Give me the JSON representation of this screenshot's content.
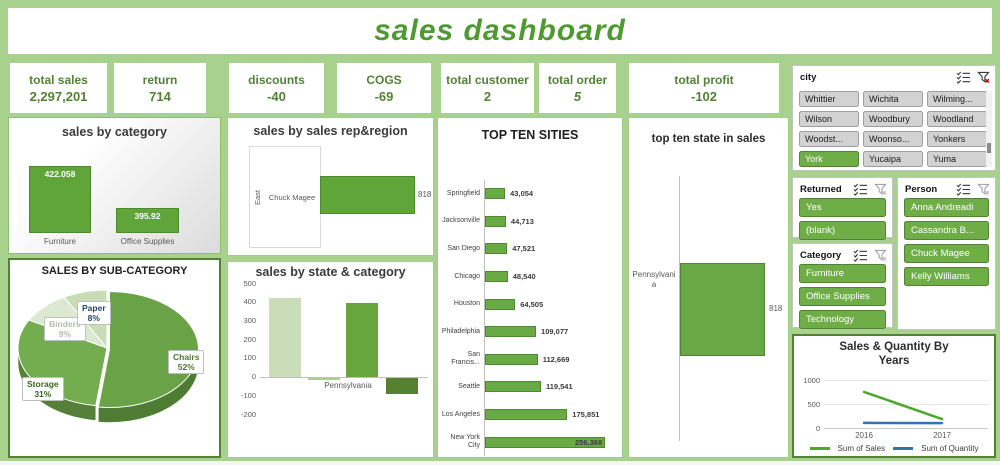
{
  "title": "sales dashboard",
  "kpis": [
    {
      "label": "total sales",
      "value": "2,297,201"
    },
    {
      "label": "return",
      "value": "714"
    },
    {
      "label": "discounts",
      "value": "-40"
    },
    {
      "label": "COGS",
      "value": "-69"
    },
    {
      "label": "total customer",
      "value": "2"
    },
    {
      "label": "total order",
      "value": "5",
      "italic": true
    },
    {
      "label": "total profit",
      "value": "-102"
    }
  ],
  "slicers": {
    "city": {
      "title": "city",
      "items": [
        "Whittier",
        "Wichita",
        "Wilming...",
        "Wilson",
        "Woodbury",
        "Woodland",
        "Woodst...",
        "Woonso...",
        "Yonkers",
        "York",
        "Yucaipa",
        "Yuma"
      ],
      "selected": [
        "York"
      ]
    },
    "returned": {
      "title": "Returned",
      "items": [
        "Yes",
        "(blank)"
      ],
      "selected": [
        "Yes",
        "(blank)"
      ]
    },
    "category": {
      "title": "Category",
      "items": [
        "Furniture",
        "Office Supplies",
        "Technology"
      ],
      "selected": [
        "Furniture",
        "Office Supplies",
        "Technology"
      ]
    },
    "person": {
      "title": "Person",
      "items": [
        "Anna Andreadi",
        "Cassandra B...",
        "Chuck Magee",
        "Kelly Williams"
      ],
      "selected": [
        "Anna Andreadi",
        "Cassandra B...",
        "Chuck Magee",
        "Kelly Williams"
      ]
    }
  },
  "colors": {
    "background": "#a9d18e",
    "accent_green": "#6fae47",
    "dark_green": "#538135",
    "bar_green": "#5fa53a",
    "line_green": "#4ea72e",
    "line_blue": "#2e75b6"
  },
  "chart_data": [
    {
      "id": "sales_by_category",
      "type": "bar",
      "title": "sales by category",
      "categories": [
        "Furniture",
        "Office Supplies"
      ],
      "values": [
        422.058,
        395.92
      ],
      "value_labels": [
        "422.058",
        "395.92"
      ],
      "ylim": [
        380,
        440
      ],
      "grid": false,
      "legend": "none"
    },
    {
      "id": "sales_by_subcategory",
      "type": "pie",
      "title": "SALES BY SUB-CATEGORY",
      "slices": [
        {
          "label": "Chairs",
          "pct": 52,
          "pct_label": "52%",
          "color": "#69a247",
          "side_color": "#4e7c33",
          "label_color": "#4e7a2a"
        },
        {
          "label": "Storage",
          "pct": 31,
          "pct_label": "31%",
          "color": "#74ac50",
          "side_color": "#567f3a",
          "label_color": "#3a661f"
        },
        {
          "label": "Binders",
          "pct": 9,
          "pct_label": "9%",
          "color": "#dde8d2",
          "side_color": "#c3d2b4",
          "label_color": "#b2bcaa"
        },
        {
          "label": "Paper",
          "pct": 8,
          "pct_label": "8%",
          "color": "#c8dcb6",
          "side_color": "#afc79a",
          "label_color": "#24466e"
        }
      ],
      "effect": "3d",
      "start_angle_deg": 0,
      "clockwise": true
    },
    {
      "id": "sales_by_rep_region",
      "type": "bar",
      "orientation": "horizontal",
      "title": "sales by sales rep&region",
      "region": "East",
      "categories": [
        "Chuck Magee"
      ],
      "values": [
        818
      ],
      "value_labels": [
        "818"
      ]
    },
    {
      "id": "sales_by_state_category",
      "type": "column",
      "title": "sales by state & category",
      "x_label": "Pennsylvania",
      "values": [
        422,
        -15,
        395,
        -90
      ],
      "colors": [
        "#c9ddb8",
        "#a9d18e",
        "#68a53d",
        "#568230"
      ],
      "yticks": [
        500,
        400,
        300,
        200,
        100,
        0,
        -100,
        -200
      ],
      "ylim": [
        -250,
        500
      ]
    },
    {
      "id": "top_ten_cities",
      "type": "bar",
      "orientation": "horizontal",
      "title": "TOP TEN SITIES",
      "categories": [
        "Springfield",
        "Jacksonville",
        "San Diego",
        "Chicago",
        "Houston",
        "Philadelphia",
        "San Francis...",
        "Seattle",
        "Los Angeles",
        "New York City"
      ],
      "values": [
        43054,
        44713,
        47521,
        48540,
        64505,
        109077,
        112669,
        119541,
        175851,
        256368
      ],
      "value_labels": [
        "43,054",
        "44,713",
        "47,521",
        "48,540",
        "64,505",
        "109,077",
        "112,669",
        "119,541",
        "175,851",
        "256,368"
      ],
      "xmax": 256368
    },
    {
      "id": "top_ten_state",
      "type": "bar",
      "orientation": "horizontal",
      "title": "top ten state in sales",
      "categories": [
        "Pennsylvania"
      ],
      "values": [
        818
      ],
      "value_labels": [
        "818"
      ]
    },
    {
      "id": "sales_qty_by_years",
      "type": "line",
      "title": "Sales & Quantity By Years",
      "x": [
        "2016",
        "2017"
      ],
      "series": [
        {
          "name": "Sum of Sales",
          "color": "#4ea72e",
          "values": [
            790,
            110
          ]
        },
        {
          "name": "Sum of Quantity",
          "color": "#2e75b6",
          "values": [
            15,
            10
          ]
        }
      ],
      "yticks": [
        1000,
        500,
        0
      ],
      "ylim": [
        0,
        1000
      ],
      "legend": "bottom"
    }
  ]
}
